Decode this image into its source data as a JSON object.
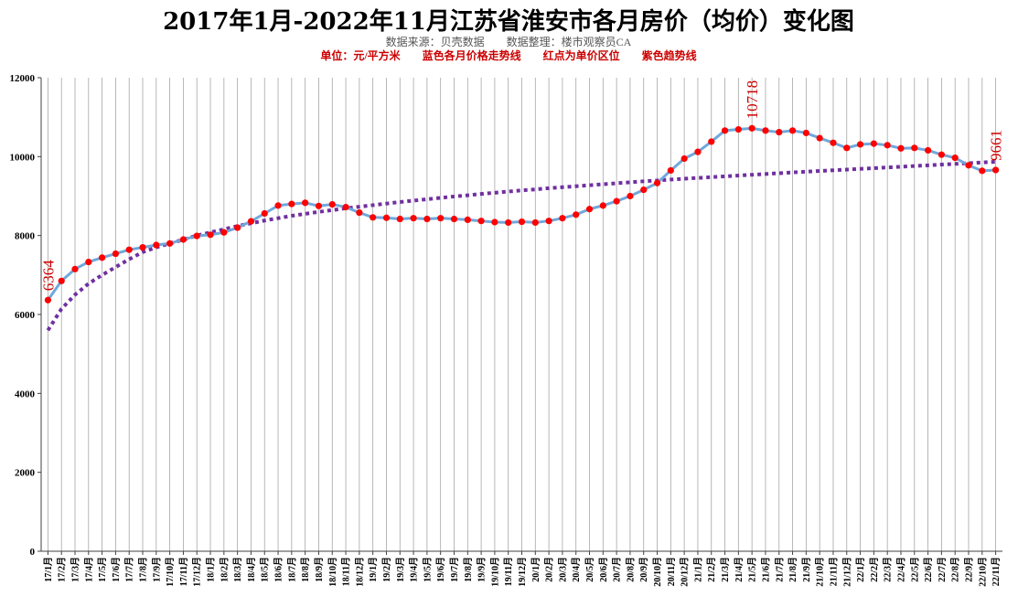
{
  "chart_data": {
    "type": "line",
    "title": "2017年1月-2022年11月江苏省淮安市各月房价（均价）变化图",
    "subtitle": "数据来源：贝壳数据　　数据整理：楼市观察员CA",
    "legend_text": "单位：元/平方米　　蓝色各月价格走势线　　红点为单价区位　　紫色趋势线",
    "xlabel": "",
    "ylabel": "",
    "ylim": [
      0,
      12000
    ],
    "yticks": [
      0,
      2000,
      4000,
      6000,
      8000,
      10000,
      12000
    ],
    "grid": true,
    "categories": [
      "17/1月",
      "17/2月",
      "17/3月",
      "17/4月",
      "17/5月",
      "17/6月",
      "17/7月",
      "17/8月",
      "17/9月",
      "17/10月",
      "17/11月",
      "17/12月",
      "18/1月",
      "18/2月",
      "18/3月",
      "18/4月",
      "18/5月",
      "18/6月",
      "18/7月",
      "18/8月",
      "18/9月",
      "18/10月",
      "18/11月",
      "18/12月",
      "19/1月",
      "19/2月",
      "19/3月",
      "19/4月",
      "19/5月",
      "19/6月",
      "19/7月",
      "19/8月",
      "19/9月",
      "19/10月",
      "19/11月",
      "19/12月",
      "20/1月",
      "20/2月",
      "20/3月",
      "20/4月",
      "20/5月",
      "20/6月",
      "20/7月",
      "20/8月",
      "20/9月",
      "20/10月",
      "20/11月",
      "20/12月",
      "21/1月",
      "21/2月",
      "21/3月",
      "21/4月",
      "21/5月",
      "21/6月",
      "21/7月",
      "21/8月",
      "21/9月",
      "21/10月",
      "21/11月",
      "21/12月",
      "22/1月",
      "22/2月",
      "22/3月",
      "22/4月",
      "22/5月",
      "22/6月",
      "22/7月",
      "22/8月",
      "22/9月",
      "22/10月",
      "22/11月"
    ],
    "series": [
      {
        "values": [
          6364,
          6850,
          7150,
          7330,
          7440,
          7540,
          7640,
          7700,
          7760,
          7800,
          7900,
          7990,
          8020,
          8080,
          8200,
          8360,
          8560,
          8760,
          8800,
          8830,
          8750,
          8790,
          8720,
          8580,
          8460,
          8450,
          8420,
          8440,
          8420,
          8440,
          8420,
          8400,
          8370,
          8340,
          8330,
          8350,
          8330,
          8370,
          8440,
          8530,
          8670,
          8760,
          8870,
          9000,
          9160,
          9330,
          9650,
          9950,
          10120,
          10380,
          10660,
          10690,
          10718,
          10660,
          10620,
          10660,
          10600,
          10470,
          10350,
          10220,
          10310,
          10330,
          10290,
          10210,
          10220,
          10160,
          10050,
          9970,
          9780,
          9640,
          9661
        ],
        "color": "#6fa8dc",
        "marker_color": "#ff0000"
      },
      {
        "type": "trend",
        "style": "dotted",
        "color": "#7030a0",
        "values": [
          5600,
          6140,
          6500,
          6780,
          7000,
          7200,
          7400,
          7580,
          7700,
          7800,
          7900,
          8000,
          8080,
          8160,
          8240,
          8310,
          8380,
          8440,
          8500,
          8550,
          8600,
          8645,
          8690,
          8730,
          8770,
          8810,
          8850,
          8885,
          8920,
          8955,
          8990,
          9020,
          9055,
          9085,
          9115,
          9145,
          9170,
          9200,
          9225,
          9250,
          9275,
          9300,
          9325,
          9350,
          9375,
          9395,
          9420,
          9440,
          9460,
          9480,
          9500,
          9520,
          9540,
          9560,
          9580,
          9600,
          9618,
          9636,
          9654,
          9672,
          9690,
          9708,
          9726,
          9744,
          9762,
          9780,
          9798,
          9816,
          9834,
          9852,
          9870
        ]
      }
    ],
    "annotations": [
      {
        "index": 0,
        "text": "6364"
      },
      {
        "index": 52,
        "text": "10718"
      },
      {
        "index": 70,
        "text": "9661"
      }
    ]
  }
}
